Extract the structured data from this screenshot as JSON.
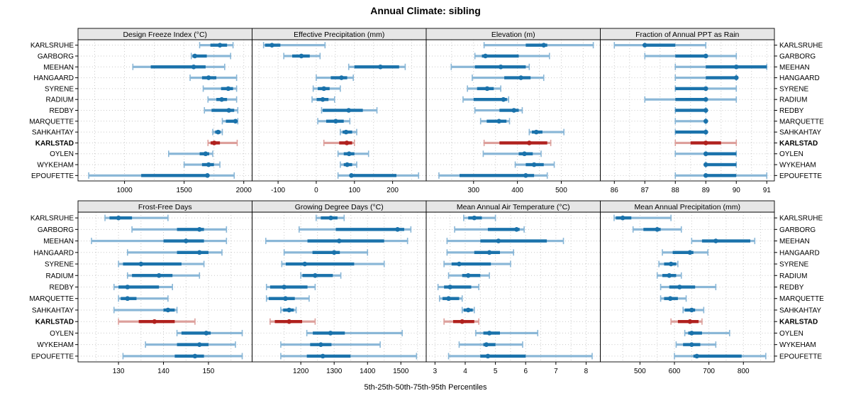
{
  "title": "Annual Climate: sibling",
  "caption": "5th-25th-50th-75th-95th Percentiles",
  "stations": [
    "KARLSRUHE",
    "GARBORG",
    "MEEHAN",
    "HANGAARD",
    "SYRENE",
    "RADIUM",
    "REDBY",
    "MARQUETTE",
    "SAHKAHTAY",
    "KARLSTAD",
    "OYLEN",
    "WYKEHAM",
    "EPOUFETTE"
  ],
  "highlight_station": "KARLSTAD",
  "percentile_levels": [
    5,
    25,
    50,
    75,
    95
  ],
  "colors": {
    "normal": "#1a72ab",
    "normal_light": "#8ab7d7",
    "highlight": "#b0211e",
    "highlight_light": "#dda09c",
    "grid": "#c9c9c9",
    "strip_bg": "#e6e6e6",
    "border": "#000000",
    "text": "#000000"
  },
  "chart_data": [
    {
      "type": "interval",
      "title": "Design Freeze Index (°C)",
      "ticks": [
        1000,
        1500,
        2000
      ],
      "xlim": [
        610,
        2070
      ],
      "values": [
        [
          1630,
          1720,
          1800,
          1860,
          1910
        ],
        [
          1560,
          1570,
          1590,
          1690,
          1890
        ],
        [
          1070,
          1220,
          1580,
          1680,
          1840
        ],
        [
          1550,
          1650,
          1705,
          1770,
          1940
        ],
        [
          1660,
          1810,
          1870,
          1910,
          1940
        ],
        [
          1700,
          1770,
          1815,
          1860,
          1940
        ],
        [
          1670,
          1730,
          1875,
          1920,
          1950
        ],
        [
          1820,
          1850,
          1930,
          1940,
          1950
        ],
        [
          1740,
          1760,
          1785,
          1805,
          1820
        ],
        [
          1700,
          1722,
          1752,
          1800,
          1945
        ],
        [
          1370,
          1630,
          1680,
          1710,
          1740
        ],
        [
          1500,
          1650,
          1705,
          1750,
          1800
        ],
        [
          700,
          1140,
          1695,
          1710,
          1920
        ]
      ]
    },
    {
      "type": "interval",
      "title": "Effective Precipitation (mm)",
      "ticks": [
        -100,
        0,
        100,
        200
      ],
      "xlim": [
        -168,
        288
      ],
      "values": [
        [
          -138,
          -134,
          -116,
          -94,
          23
        ],
        [
          -85,
          -63,
          -39,
          -17,
          10
        ],
        [
          85,
          100,
          168,
          217,
          233
        ],
        [
          0,
          38,
          66,
          81,
          97
        ],
        [
          -8,
          4,
          20,
          35,
          63
        ],
        [
          -11,
          1,
          17,
          32,
          48
        ],
        [
          14,
          17,
          85,
          122,
          159
        ],
        [
          4,
          26,
          51,
          72,
          88
        ],
        [
          63,
          69,
          78,
          94,
          106
        ],
        [
          20,
          60,
          80,
          94,
          100
        ],
        [
          57,
          72,
          86,
          100,
          137
        ],
        [
          63,
          72,
          81,
          94,
          106
        ],
        [
          57,
          88,
          92,
          210,
          268
        ]
      ]
    },
    {
      "type": "interval",
      "title": "Elevation (m)",
      "ticks": [
        300,
        400,
        500
      ],
      "xlim": [
        192,
        589
      ],
      "values": [
        [
          324,
          419,
          460,
          468,
          573
        ],
        [
          303,
          319,
          327,
          403,
          473
        ],
        [
          249,
          303,
          362,
          419,
          427
        ],
        [
          297,
          370,
          408,
          430,
          460
        ],
        [
          286,
          308,
          331,
          346,
          362
        ],
        [
          276,
          300,
          368,
          376,
          380
        ],
        [
          303,
          359,
          392,
          403,
          411
        ],
        [
          316,
          330,
          358,
          375,
          382
        ],
        [
          427,
          433,
          443,
          457,
          506
        ],
        [
          324,
          359,
          427,
          468,
          476
        ],
        [
          322,
          403,
          416,
          435,
          454
        ],
        [
          395,
          419,
          438,
          460,
          484
        ],
        [
          221,
          268,
          419,
          438,
          468
        ]
      ]
    },
    {
      "type": "interval",
      "title": "Fraction of Annual PPT as Rain",
      "ticks": [
        86,
        87,
        88,
        89,
        90,
        91
      ],
      "xlim": [
        85.54,
        91.25
      ],
      "values": [
        [
          86,
          87,
          87,
          88,
          89
        ],
        [
          87,
          88,
          89,
          89,
          90
        ],
        [
          88,
          89,
          90,
          91,
          91
        ],
        [
          88,
          89,
          90,
          90,
          90
        ],
        [
          88,
          88,
          89,
          89,
          90
        ],
        [
          87,
          88,
          89,
          89,
          90
        ],
        [
          88,
          88,
          89,
          89,
          89
        ],
        [
          88,
          89,
          89,
          89,
          89
        ],
        [
          88,
          88,
          89,
          89,
          89
        ],
        [
          88,
          88.5,
          89,
          89.5,
          90
        ],
        [
          88,
          89,
          89,
          90,
          90
        ],
        [
          89,
          89,
          89,
          90,
          90
        ],
        [
          88,
          89,
          89,
          90,
          91
        ]
      ]
    },
    {
      "type": "interval",
      "title": "Frost-Free Days",
      "ticks": [
        130,
        140,
        150
      ],
      "xlim": [
        121,
        159.7
      ],
      "values": [
        [
          127,
          128,
          130,
          133,
          141
        ],
        [
          133,
          143,
          148,
          149,
          154
        ],
        [
          124,
          140,
          145,
          149,
          154
        ],
        [
          132,
          143,
          148,
          150,
          153
        ],
        [
          130,
          131,
          135,
          144,
          149
        ],
        [
          132,
          133,
          139,
          142,
          148
        ],
        [
          129,
          130,
          132,
          139,
          142
        ],
        [
          130,
          130.5,
          132,
          134,
          141
        ],
        [
          129,
          140,
          141,
          142.5,
          143
        ],
        [
          130,
          134.5,
          138,
          142.5,
          147
        ],
        [
          143,
          144,
          149.5,
          150.5,
          157.5
        ],
        [
          136,
          143,
          148,
          150,
          156
        ],
        [
          131,
          142.5,
          147,
          149,
          157.5
        ]
      ]
    },
    {
      "type": "interval",
      "title": "Growing Degree Days (°C)",
      "ticks": [
        1200,
        1300,
        1400,
        1500
      ],
      "xlim": [
        1054,
        1576
      ],
      "values": [
        [
          1246,
          1260,
          1290,
          1310,
          1330
        ],
        [
          1195,
          1305,
          1490,
          1510,
          1530
        ],
        [
          1095,
          1220,
          1315,
          1450,
          1520
        ],
        [
          1150,
          1235,
          1300,
          1317,
          1400
        ],
        [
          1143,
          1155,
          1212,
          1360,
          1450
        ],
        [
          1200,
          1205,
          1243,
          1296,
          1320
        ],
        [
          1097,
          1108,
          1150,
          1220,
          1243
        ],
        [
          1097,
          1104,
          1154,
          1182,
          1225
        ],
        [
          1140,
          1147,
          1165,
          1179,
          1186
        ],
        [
          1108,
          1122,
          1165,
          1204,
          1243
        ],
        [
          1218,
          1236,
          1289,
          1332,
          1504
        ],
        [
          1140,
          1228,
          1260,
          1292,
          1438
        ],
        [
          1140,
          1218,
          1266,
          1349,
          1547
        ]
      ]
    },
    {
      "type": "interval",
      "title": "Mean Annual Air Temperature (°C)",
      "ticks": [
        3,
        4,
        5,
        6,
        7,
        8
      ],
      "xlim": [
        2.71,
        8.47
      ],
      "values": [
        [
          3.95,
          4.1,
          4.3,
          4.55,
          5.0
        ],
        [
          3.65,
          4.75,
          5.7,
          5.8,
          5.95
        ],
        [
          3.4,
          4.5,
          5.1,
          6.7,
          7.25
        ],
        [
          3.4,
          4.3,
          4.8,
          5.15,
          5.6
        ],
        [
          3.3,
          3.55,
          3.8,
          4.85,
          5.5
        ],
        [
          3.45,
          3.9,
          4.1,
          4.5,
          4.8
        ],
        [
          3.1,
          3.3,
          3.5,
          4.2,
          4.45
        ],
        [
          3.15,
          3.25,
          3.45,
          3.8,
          3.9
        ],
        [
          3.9,
          3.95,
          4.1,
          4.25,
          4.3
        ],
        [
          3.3,
          3.6,
          3.9,
          4.3,
          4.45
        ],
        [
          4.35,
          4.6,
          4.8,
          5.15,
          6.4
        ],
        [
          3.8,
          4.6,
          4.7,
          5.0,
          5.9
        ],
        [
          3.45,
          4.5,
          4.75,
          6.0,
          8.2
        ]
      ]
    },
    {
      "type": "interval",
      "title": "Mean Annual Precipitation (mm)",
      "ticks": [
        500,
        600,
        700,
        800
      ],
      "xlim": [
        385,
        890
      ],
      "values": [
        [
          425,
          430,
          450,
          475,
          590
        ],
        [
          480,
          510,
          550,
          560,
          620
        ],
        [
          650,
          680,
          720,
          820,
          833
        ],
        [
          565,
          595,
          645,
          655,
          697
        ],
        [
          555,
          570,
          590,
          605,
          610
        ],
        [
          550,
          565,
          585,
          605,
          620
        ],
        [
          560,
          585,
          615,
          660,
          720
        ],
        [
          560,
          570,
          588,
          610,
          634
        ],
        [
          625,
          630,
          650,
          660,
          685
        ],
        [
          590,
          610,
          645,
          670,
          680
        ],
        [
          630,
          640,
          650,
          680,
          760
        ],
        [
          605,
          625,
          650,
          675,
          720
        ],
        [
          600,
          655,
          665,
          795,
          865
        ]
      ]
    }
  ]
}
